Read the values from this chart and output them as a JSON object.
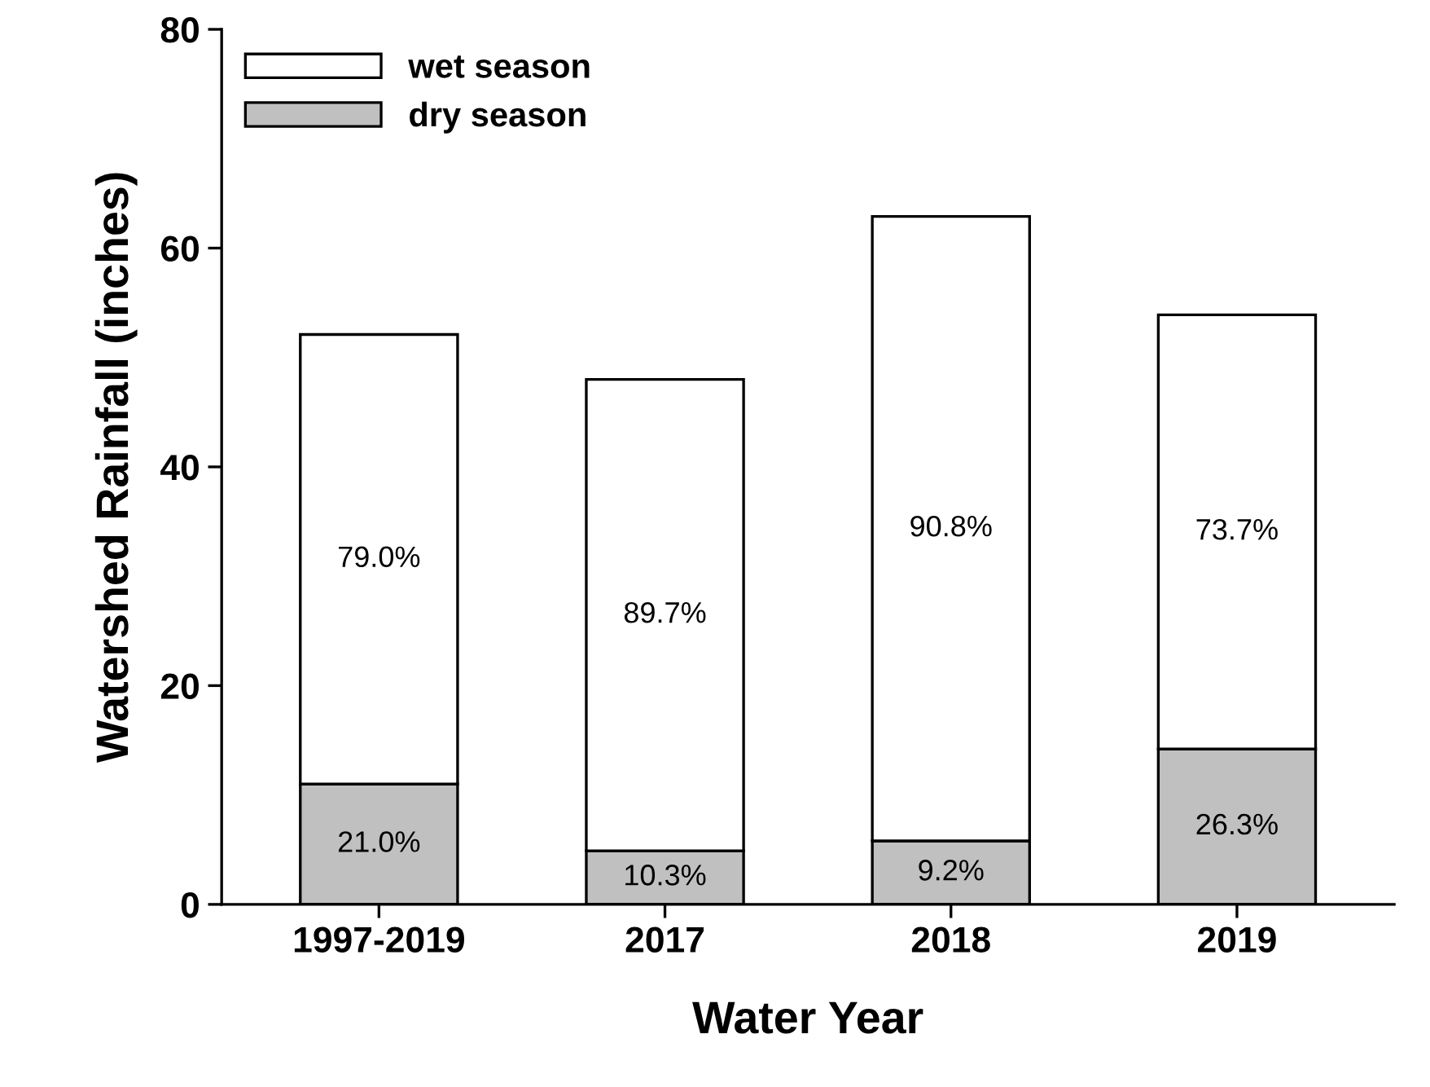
{
  "chart_data": {
    "type": "bar",
    "stacked": true,
    "xlabel": "Water Year",
    "ylabel": "Watershed Rainfall (inches)",
    "categories": [
      "1997-2019",
      "2017",
      "2018",
      "2019"
    ],
    "series": [
      {
        "name": "dry season",
        "color": "#c0c0c0",
        "values": [
          11.0,
          4.9,
          5.8,
          14.2
        ]
      },
      {
        "name": "wet season",
        "color": "#ffffff",
        "values": [
          41.1,
          43.1,
          57.1,
          39.7
        ]
      }
    ],
    "annotations": [
      "21.0%",
      "10.3%",
      "9.2%",
      "26.3%",
      "79.0%",
      "89.7%",
      "90.8%",
      "73.7%"
    ],
    "ylim": [
      0,
      80
    ],
    "yticks": [
      0,
      20,
      40,
      60,
      80
    ],
    "grid": false,
    "legend": "top left"
  }
}
